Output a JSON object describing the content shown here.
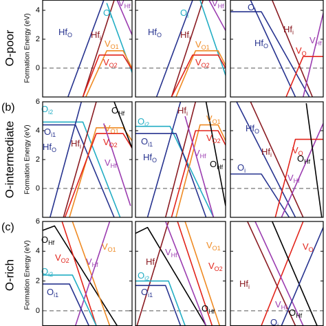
{
  "chart_data": [
    {
      "type": "line",
      "condition": "O-poor",
      "ylabel": "Formation Energy (eV)",
      "xlim": [
        0,
        6
      ],
      "ylim": [
        -2,
        4.7
      ],
      "yticks": [
        0,
        2,
        4
      ],
      "series": [
        {
          "name": "Hf",
          "sub": "O",
          "color": "#27338f",
          "x": [
            1.7,
            4.1
          ],
          "values": [
            -2,
            4.7
          ]
        },
        {
          "name": "Hf",
          "sub": "i",
          "color": "#8a1b22",
          "x": [
            2.7,
            4.8
          ],
          "values": [
            -2,
            4.7
          ]
        },
        {
          "name": "O",
          "sub": "i",
          "color": "#22adc4",
          "x": [
            4.3,
            6
          ],
          "values": [
            4.5,
            -0.3
          ]
        },
        {
          "name": "V",
          "sub": "Hf",
          "color": "#9b3cb0",
          "x": [
            5,
            6
          ],
          "values": [
            4.7,
            2.3
          ]
        },
        {
          "name": "V",
          "sub": "O1",
          "color": "#ef8a22",
          "x": [
            2.9,
            4.3,
            5.4,
            6
          ],
          "values": [
            -2,
            1.2,
            1.2,
            0
          ]
        },
        {
          "name": "V",
          "sub": "O2",
          "color": "#e2231a",
          "x": [
            2.7,
            3.8,
            5.4,
            6
          ],
          "values": [
            -2,
            0.9,
            0.9,
            -0.1
          ]
        }
      ]
    },
    {
      "type": "line",
      "xlim": [
        0,
        6
      ],
      "ylim": [
        -2,
        4.7
      ],
      "yticks": [
        0,
        2,
        4
      ],
      "series": [
        {
          "name": "Hf",
          "sub": "O",
          "color": "#27338f",
          "x": [
            1.4,
            3.8
          ],
          "values": [
            -2,
            4.7
          ]
        },
        {
          "name": "Hf",
          "sub": "i",
          "color": "#8a1b22",
          "x": [
            2.4,
            4.5
          ],
          "values": [
            -2,
            4.7
          ]
        },
        {
          "name": "O",
          "sub": "i",
          "color": "#22adc4",
          "x": [
            4.3,
            6
          ],
          "values": [
            4.7,
            -0.5
          ]
        },
        {
          "name": "V",
          "sub": "Hf",
          "color": "#9b3cb0",
          "x": [
            4.9,
            6
          ],
          "values": [
            4.7,
            2.6
          ]
        },
        {
          "name": "V",
          "sub": "O1",
          "color": "#ef8a22",
          "x": [
            2.7,
            4,
            5.5,
            6
          ],
          "values": [
            -2,
            1.2,
            1.2,
            0.2
          ]
        },
        {
          "name": "V",
          "sub": "O2",
          "color": "#e2231a",
          "x": [
            2.4,
            3.8,
            5.5,
            6
          ],
          "values": [
            -2,
            0.9,
            0.9,
            0
          ]
        }
      ]
    },
    {
      "type": "line",
      "xlim": [
        0,
        6
      ],
      "ylim": [
        -2,
        4.7
      ],
      "yticks": [
        0,
        2,
        4
      ],
      "series": [
        {
          "name": "O",
          "sub": "i",
          "color": "#27338f",
          "x": [
            0,
            2,
            5.1
          ],
          "values": [
            3.9,
            3.9,
            -2
          ]
        },
        {
          "name": "Hf",
          "sub": "O",
          "color": "#27338f",
          "x": [
            1.3,
            4.2
          ],
          "values": [
            4.7,
            -2
          ]
        },
        {
          "name": "Hf",
          "sub": "i",
          "color": "#8a1b22",
          "x": [
            2.7,
            5.3
          ],
          "values": [
            4.7,
            -2
          ]
        },
        {
          "name": "V",
          "sub": "Hf",
          "color": "#9b3cb0",
          "x": [
            4.7,
            6
          ],
          "values": [
            -2,
            3.8
          ]
        },
        {
          "name": "V",
          "sub": "O",
          "color": "#e2231a",
          "x": [
            3.6,
            4.7,
            6
          ],
          "values": [
            -2,
            0.8,
            0.8
          ]
        }
      ]
    },
    {
      "type": "line",
      "condition": "O-intermediate",
      "panel_label": "(b)",
      "ylabel": "Formation Energy (eV)",
      "xlim": [
        0,
        6
      ],
      "ylim": [
        -2,
        6
      ],
      "yticks": [
        0,
        2,
        4,
        6
      ],
      "series": [
        {
          "name": "O",
          "sub": "i2",
          "color": "#22adc4",
          "x": [
            0,
            2.7,
            5.2
          ],
          "values": [
            4.6,
            4.6,
            -2
          ]
        },
        {
          "name": "O",
          "sub": "i1",
          "color": "#27338f",
          "x": [
            0,
            2.2,
            4.8
          ],
          "values": [
            4.4,
            4.4,
            -2
          ]
        },
        {
          "name": "Hf",
          "sub": "O",
          "color": "#27338f",
          "x": [
            0.5,
            2.6
          ],
          "values": [
            -2,
            6
          ]
        },
        {
          "name": "Hf",
          "sub": "i",
          "color": "#8a1b22",
          "x": [
            1.4,
            3.6
          ],
          "values": [
            -2,
            6
          ]
        },
        {
          "name": "V",
          "sub": "O1",
          "color": "#ef8a22",
          "x": [
            1.8,
            3.6,
            5.4,
            6
          ],
          "values": [
            -2,
            4.2,
            4.2,
            3.3
          ]
        },
        {
          "name": "V",
          "sub": "O2",
          "color": "#e2231a",
          "x": [
            1.5,
            3.6,
            5.4,
            6
          ],
          "values": [
            -2,
            3.8,
            3.8,
            2.8
          ]
        },
        {
          "name": "V",
          "sub": "Hf",
          "color": "#9b3cb0",
          "x": [
            4.1,
            5.9
          ],
          "values": [
            4.5,
            -1.2
          ]
        },
        {
          "name": "O",
          "sub": "Hf",
          "color": "#000000",
          "x": [
            4.8,
            6
          ],
          "values": [
            6,
            2.8
          ]
        }
      ]
    },
    {
      "type": "line",
      "xlim": [
        0,
        6
      ],
      "ylim": [
        -2,
        6
      ],
      "yticks": [
        0,
        2,
        4,
        6
      ],
      "series": [
        {
          "name": "O",
          "sub": "i2",
          "color": "#22adc4",
          "x": [
            0,
            2.3,
            5.2
          ],
          "values": [
            4.3,
            4.3,
            -2
          ]
        },
        {
          "name": "O",
          "sub": "i1",
          "color": "#27338f",
          "x": [
            0,
            2.7,
            4.7
          ],
          "values": [
            3.8,
            3.8,
            -2
          ]
        },
        {
          "name": "Hf",
          "sub": "O",
          "color": "#27338f",
          "x": [
            0.8,
            3
          ],
          "values": [
            -2,
            6
          ]
        },
        {
          "name": "Hf",
          "sub": "i",
          "color": "#8a1b22",
          "x": [
            2,
            4
          ],
          "values": [
            -2,
            6
          ]
        },
        {
          "name": "V",
          "sub": "O1",
          "color": "#ef8a22",
          "x": [
            2.7,
            4.3,
            5.5,
            6
          ],
          "values": [
            -2,
            4.4,
            4.4,
            3.3
          ]
        },
        {
          "name": "V",
          "sub": "O2",
          "color": "#e2231a",
          "x": [
            2.4,
            4,
            5.5,
            6
          ],
          "values": [
            -2,
            4,
            4,
            3
          ]
        },
        {
          "name": "V",
          "sub": "Hf",
          "color": "#9b3cb0",
          "x": [
            3.3,
            5.2
          ],
          "values": [
            5,
            -2
          ]
        },
        {
          "name": "O",
          "sub": "Hf",
          "color": "#000000",
          "x": [
            4.7,
            6
          ],
          "values": [
            6,
            -1.2
          ]
        }
      ]
    },
    {
      "type": "line",
      "xlim": [
        0,
        6
      ],
      "ylim": [
        -2,
        6
      ],
      "yticks": [
        0,
        2,
        4,
        6
      ],
      "series": [
        {
          "name": "Hf",
          "sub": "O",
          "color": "#27338f",
          "x": [
            0.4,
            4.2
          ],
          "values": [
            6,
            -2
          ]
        },
        {
          "name": "Hf",
          "sub": "i",
          "color": "#8a1b22",
          "x": [
            1.3,
            4.7
          ],
          "values": [
            6,
            -2
          ]
        },
        {
          "name": "O",
          "sub": "i",
          "color": "#27338f",
          "x": [
            0,
            2,
            3.8
          ],
          "values": [
            1,
            1,
            -2
          ]
        },
        {
          "name": "V",
          "sub": "Hf",
          "color": "#9b3cb0",
          "x": [
            3.3,
            6
          ],
          "values": [
            -2,
            4.5
          ]
        },
        {
          "name": "V",
          "sub": "O",
          "color": "#e2231a",
          "x": [
            2.9,
            4.2,
            6
          ],
          "values": [
            -2,
            3.4,
            3.4
          ]
        },
        {
          "name": "O",
          "sub": "Hf",
          "color": "#000000",
          "x": [
            4.9,
            5.9
          ],
          "values": [
            5.9,
            -2
          ]
        }
      ]
    },
    {
      "type": "line",
      "condition": "O-rich",
      "panel_label": "(c)",
      "ylabel": "Formation Energy (eV)",
      "xlim": [
        0,
        6
      ],
      "ylim": [
        -1,
        6
      ],
      "yticks": [
        0,
        2,
        4,
        6
      ],
      "series": [
        {
          "name": "O",
          "sub": "Hf",
          "color": "#000000",
          "x": [
            0,
            0.8,
            5
          ],
          "values": [
            5.4,
            5.7,
            -1
          ]
        },
        {
          "name": "V",
          "sub": "O1",
          "color": "#ef8a22",
          "x": [
            2,
            4.5
          ],
          "values": [
            6,
            -1
          ]
        },
        {
          "name": "V",
          "sub": "O2",
          "color": "#e2231a",
          "x": [
            1.3,
            3.6
          ],
          "values": [
            6,
            -1
          ]
        },
        {
          "name": "V",
          "sub": "Hf",
          "color": "#9b3cb0",
          "x": [
            2.2,
            4.5
          ],
          "values": [
            -1,
            6
          ]
        },
        {
          "name": "O",
          "sub": "i2",
          "color": "#22adc4",
          "x": [
            0,
            2,
            3.6
          ],
          "values": [
            2.4,
            2.4,
            -1
          ]
        },
        {
          "name": "O",
          "sub": "i1",
          "color": "#27338f",
          "x": [
            0,
            1.8,
            3.1
          ],
          "values": [
            1.8,
            1.8,
            -1
          ]
        }
      ]
    },
    {
      "type": "line",
      "xlim": [
        0,
        6
      ],
      "ylim": [
        -1,
        6
      ],
      "yticks": [
        0,
        2,
        4,
        6
      ],
      "series": [
        {
          "name": "O",
          "sub": "Hf",
          "color": "#000000",
          "x": [
            0,
            0.8,
            4.7
          ],
          "values": [
            5.2,
            5.6,
            -1
          ]
        },
        {
          "name": "Hf",
          "sub": "i",
          "color": "#8a1b22",
          "x": [
            0.1,
            2.2
          ],
          "values": [
            -1,
            6
          ]
        },
        {
          "name": "V",
          "sub": "Hf",
          "color": "#9b3cb0",
          "x": [
            2,
            4.7
          ],
          "values": [
            6,
            -1
          ]
        },
        {
          "name": "V",
          "sub": "O1",
          "color": "#ef8a22",
          "x": [
            3.3,
            5.6
          ],
          "values": [
            6,
            -1
          ]
        },
        {
          "name": "V",
          "sub": "O2",
          "color": "#e2231a",
          "x": [
            2.8,
            5.1
          ],
          "values": [
            6,
            -1
          ]
        },
        {
          "name": "O",
          "sub": "i2",
          "color": "#22adc4",
          "x": [
            0,
            2.2,
            3.3
          ],
          "values": [
            2,
            2,
            -1
          ]
        },
        {
          "name": "O",
          "sub": "i1",
          "color": "#27338f",
          "x": [
            0,
            2,
            3
          ],
          "values": [
            1.7,
            1.7,
            -1
          ]
        }
      ]
    },
    {
      "type": "line",
      "xlim": [
        0,
        6
      ],
      "ylim": [
        -1,
        6
      ],
      "yticks": [
        0,
        2,
        4,
        6
      ],
      "series": [
        {
          "name": "V",
          "sub": "O",
          "color": "#e2231a",
          "x": [
            2,
            4.7
          ],
          "values": [
            -1,
            6
          ]
        },
        {
          "name": "Hf",
          "sub": "i",
          "color": "#8a1b22",
          "x": [
            1.1,
            4.2
          ],
          "values": [
            6,
            -1
          ]
        },
        {
          "name": "V",
          "sub": "Hf",
          "color": "#9b3cb0",
          "x": [
            1.6,
            4.7
          ],
          "values": [
            6,
            -1
          ]
        },
        {
          "name": "O",
          "sub": "Hf",
          "color": "#000000",
          "x": [
            2.7,
            5.6
          ],
          "values": [
            6,
            -1
          ]
        },
        {
          "name": "O",
          "sub": "i",
          "color": "#27338f",
          "x": [
            3.3,
            6
          ],
          "values": [
            -1,
            5.6
          ]
        }
      ]
    }
  ]
}
